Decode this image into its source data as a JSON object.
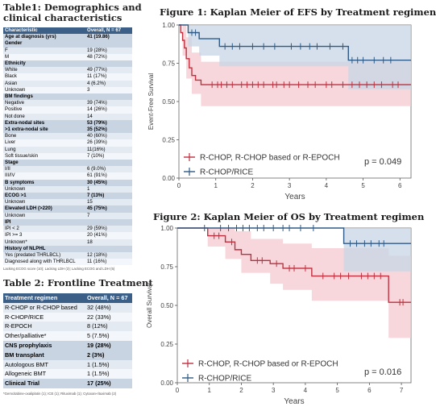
{
  "table1": {
    "title": "Table1: Demographics and clinical characteristics",
    "title_line1": "Table1: Demographics and",
    "title_line2": "clinical characteristics",
    "rows": [
      {
        "label": "Characteristic",
        "value": "Overall, N = 67",
        "kind": "hdr"
      },
      {
        "label": "Age at diagnosis (yrs)",
        "value": "41 (19.86)",
        "kind": "sec"
      },
      {
        "label": "Gender",
        "value": "",
        "kind": "sec"
      },
      {
        "label": "F",
        "value": "19 (28%)",
        "kind": "row"
      },
      {
        "label": "M",
        "value": "48 (72%)",
        "kind": "row"
      },
      {
        "label": "Ethnicity",
        "value": "",
        "kind": "sec"
      },
      {
        "label": "White",
        "value": "49 (77%)",
        "kind": "row"
      },
      {
        "label": "Black",
        "value": "11 (17%)",
        "kind": "row"
      },
      {
        "label": "Asian",
        "value": "4 (6.2%)",
        "kind": "row"
      },
      {
        "label": "Unknown",
        "value": "3",
        "kind": "row"
      },
      {
        "label": "BM findings",
        "value": "",
        "kind": "sec"
      },
      {
        "label": "Negative",
        "value": "39 (74%)",
        "kind": "row"
      },
      {
        "label": "Positive",
        "value": "14 (26%)",
        "kind": "row"
      },
      {
        "label": "Not done",
        "value": "14",
        "kind": "row"
      },
      {
        "label": "Extra-nodal sites",
        "value": "53 (79%)",
        "kind": "sec"
      },
      {
        "label": ">1 extra-nodal site",
        "value": "35 (52%)",
        "kind": "sec"
      },
      {
        "label": "Bone",
        "value": "40 (60%)",
        "kind": "row"
      },
      {
        "label": "Liver",
        "value": "26 (39%)",
        "kind": "row"
      },
      {
        "label": "Lung",
        "value": "11(16%)",
        "kind": "row"
      },
      {
        "label": "Soft tissue/skin",
        "value": "7 (10%)",
        "kind": "row"
      },
      {
        "label": "Stage",
        "value": "",
        "kind": "sec"
      },
      {
        "label": "I/II",
        "value": "6 (9.0%)",
        "kind": "row"
      },
      {
        "label": "III/IV",
        "value": "61 (91%)",
        "kind": "row"
      },
      {
        "label": "B symptoms",
        "value": "30 (45%)",
        "kind": "sec"
      },
      {
        "label": "Unknown",
        "value": "1",
        "kind": "row"
      },
      {
        "label": "ECOG >1",
        "value": "7 (13%)",
        "kind": "sec"
      },
      {
        "label": "Unknown",
        "value": "15",
        "kind": "row"
      },
      {
        "label": "Elevated LDH (>220)",
        "value": "45 (75%)",
        "kind": "sec"
      },
      {
        "label": "Unknown",
        "value": "7",
        "kind": "row"
      },
      {
        "label": "IPI",
        "value": "",
        "kind": "sec"
      },
      {
        "label": "IPI < 2",
        "value": "29 (59%)",
        "kind": "row"
      },
      {
        "label": "IPI >= 3",
        "value": "20 (41%)",
        "kind": "row"
      },
      {
        "label": "Unknown*",
        "value": "18",
        "kind": "row"
      },
      {
        "label": "History of NLPHL",
        "value": "",
        "kind": "sec"
      },
      {
        "label": "Yes (predated THRLBCL)",
        "value": "12 (18%)",
        "kind": "row"
      },
      {
        "label": "Diagnosed along with THRLBCL",
        "value": "11 (16%)",
        "kind": "row"
      }
    ],
    "footnote": "Lacking ECOG score (10); Lacking LDH (3); Lacking ECOG and LDH (5)"
  },
  "table2": {
    "title": "Table 2: Frontline Treatment",
    "rows": [
      {
        "label": "Treatment regimen",
        "value": "Overall, N = 67",
        "kind": "hdr"
      },
      {
        "label": "R-CHOP or R-CHOP based",
        "value": "32 (48%)",
        "kind": "row"
      },
      {
        "label": "R-CHOP/RICE",
        "value": "22 (33%)",
        "kind": "row"
      },
      {
        "label": "R-EPOCH",
        "value": "8 (12%)",
        "kind": "row"
      },
      {
        "label": "Other/palliative*",
        "value": "5 (7.5%)",
        "kind": "row"
      },
      {
        "label": "CNS prophylaxis",
        "value": "19 (28%)",
        "kind": "sec"
      },
      {
        "label": "BM transplant",
        "value": "2 (3%)",
        "kind": "sec"
      },
      {
        "label": "Autologous BMT",
        "value": "1 (1.5%)",
        "kind": "row"
      },
      {
        "label": "Allogeneic BMT",
        "value": "1 (1.5%)",
        "kind": "row"
      },
      {
        "label": "Clinical Trial",
        "value": "17 (25%)",
        "kind": "sec"
      }
    ],
    "footnote": "*Gemcitabine-oxaliplatin (1); ICE (1); Rituximab (1); Cytoxan-rituximab (2)"
  },
  "colors": {
    "red": "#c0303f",
    "blue": "#2f5a86",
    "red_band": "#f4c9d0",
    "blue_band": "#c7d6e5",
    "header": "#3b5f86"
  },
  "chart_data": [
    {
      "type": "line",
      "title": "Figure 1: Kaplan Meier of EFS by Treatment regimen",
      "xlabel": "Years",
      "ylabel": "Event-Free Survival",
      "xlim": [
        0,
        6.3
      ],
      "ylim": [
        0,
        1.0
      ],
      "xticks": [
        "0",
        "1",
        "2",
        "3",
        "4",
        "5",
        "6"
      ],
      "yticks": [
        "0.00",
        "0.25",
        "0.50",
        "0.75",
        "1.00"
      ],
      "pvalue": "p = 0.049",
      "legend_position": "bottom-left",
      "series": [
        {
          "name": "R-CHOP, R-CHOP based or R-EPOCH",
          "color": "red",
          "steps": [
            [
              0,
              1.0
            ],
            [
              0.05,
              0.95
            ],
            [
              0.1,
              0.9
            ],
            [
              0.15,
              0.85
            ],
            [
              0.2,
              0.78
            ],
            [
              0.28,
              0.72
            ],
            [
              0.35,
              0.67
            ],
            [
              0.45,
              0.64
            ],
            [
              0.6,
              0.61
            ],
            [
              6.3,
              0.61
            ]
          ],
          "ci_upper": [
            [
              0,
              1.0
            ],
            [
              0.1,
              1.0
            ],
            [
              0.2,
              0.92
            ],
            [
              0.35,
              0.82
            ],
            [
              0.6,
              0.76
            ],
            [
              6.3,
              0.76
            ]
          ],
          "ci_lower": [
            [
              0,
              1.0
            ],
            [
              0.1,
              0.8
            ],
            [
              0.2,
              0.65
            ],
            [
              0.35,
              0.55
            ],
            [
              0.6,
              0.47
            ],
            [
              6.3,
              0.47
            ]
          ],
          "censors": [
            0.9,
            1.05,
            1.15,
            1.3,
            1.45,
            1.7,
            1.85,
            2.0,
            2.15,
            2.3,
            2.55,
            2.65,
            2.85,
            3.0,
            3.25,
            3.5,
            3.7,
            4.0,
            4.15,
            4.45,
            4.7,
            4.9,
            5.1,
            5.3,
            5.5,
            5.8,
            5.95
          ]
        },
        {
          "name": "R-CHOP/RICE",
          "color": "blue",
          "steps": [
            [
              0,
              1.0
            ],
            [
              0.25,
              0.95
            ],
            [
              0.55,
              0.91
            ],
            [
              1.1,
              0.86
            ],
            [
              4.6,
              0.86
            ],
            [
              4.6,
              0.77
            ],
            [
              6.3,
              0.77
            ]
          ],
          "ci_upper": [
            [
              0,
              1.0
            ],
            [
              6.3,
              1.0
            ]
          ],
          "ci_lower": [
            [
              0,
              1.0
            ],
            [
              0.25,
              0.86
            ],
            [
              0.55,
              0.8
            ],
            [
              1.1,
              0.73
            ],
            [
              4.6,
              0.73
            ],
            [
              4.6,
              0.58
            ],
            [
              6.3,
              0.58
            ]
          ],
          "censors": [
            0.35,
            0.45,
            1.25,
            1.45,
            1.65,
            2.0,
            2.3,
            2.6,
            3.05,
            3.3,
            3.55,
            3.75,
            4.1,
            4.45,
            4.7,
            4.85,
            5.0,
            5.3,
            5.55,
            5.75
          ]
        }
      ]
    },
    {
      "type": "line",
      "title": "Figure 2: Kaplan Meier of OS by Treatment regimen",
      "xlabel": "Years",
      "ylabel": "Overall Survival",
      "xlim": [
        0,
        7.3
      ],
      "ylim": [
        0,
        1.0
      ],
      "xticks": [
        "0",
        "1",
        "2",
        "3",
        "4",
        "5",
        "6",
        "7"
      ],
      "yticks": [
        "0.00",
        "0.25",
        "0.50",
        "0.75",
        "1.00"
      ],
      "pvalue": "p = 0.016",
      "legend_position": "bottom-left",
      "series": [
        {
          "name": "R-CHOP, R-CHOP based or R-EPOCH",
          "color": "red",
          "steps": [
            [
              0,
              1.0
            ],
            [
              0.95,
              0.95
            ],
            [
              1.5,
              0.91
            ],
            [
              1.8,
              0.86
            ],
            [
              2.0,
              0.83
            ],
            [
              2.3,
              0.79
            ],
            [
              2.9,
              0.77
            ],
            [
              3.3,
              0.74
            ],
            [
              4.2,
              0.69
            ],
            [
              6.6,
              0.69
            ],
            [
              6.6,
              0.52
            ],
            [
              7.3,
              0.52
            ]
          ],
          "ci_upper": [
            [
              0,
              1.0
            ],
            [
              1.5,
              1.0
            ],
            [
              1.8,
              0.98
            ],
            [
              2.3,
              0.93
            ],
            [
              3.3,
              0.9
            ],
            [
              4.2,
              0.87
            ],
            [
              6.6,
              0.87
            ],
            [
              6.6,
              0.82
            ],
            [
              7.3,
              0.82
            ]
          ],
          "ci_lower": [
            [
              0,
              1.0
            ],
            [
              0.95,
              0.88
            ],
            [
              1.5,
              0.8
            ],
            [
              2.0,
              0.71
            ],
            [
              2.9,
              0.64
            ],
            [
              3.3,
              0.6
            ],
            [
              4.2,
              0.53
            ],
            [
              6.6,
              0.53
            ],
            [
              6.6,
              0.29
            ],
            [
              7.3,
              0.29
            ]
          ],
          "censors": [
            1.15,
            1.3,
            1.7,
            2.5,
            2.65,
            3.1,
            3.5,
            3.65,
            4.0,
            4.55,
            4.9,
            5.1,
            5.35,
            5.75,
            5.95,
            6.15,
            6.35,
            6.95,
            7.05
          ]
        },
        {
          "name": "R-CHOP/RICE",
          "color": "blue",
          "steps": [
            [
              0,
              1.0
            ],
            [
              5.2,
              1.0
            ],
            [
              5.2,
              0.9
            ],
            [
              7.3,
              0.9
            ]
          ],
          "ci_upper": [
            [
              0,
              1.0
            ],
            [
              7.3,
              1.0
            ]
          ],
          "ci_lower": [
            [
              0,
              1.0
            ],
            [
              5.2,
              1.0
            ],
            [
              5.2,
              0.72
            ],
            [
              7.3,
              0.72
            ]
          ],
          "censors": [
            0.85,
            1.35,
            1.6,
            1.85,
            2.05,
            2.25,
            2.5,
            2.7,
            3.0,
            3.3,
            3.5,
            3.85,
            4.25,
            5.4,
            5.6,
            5.85,
            6.05,
            6.3,
            6.45
          ]
        }
      ]
    }
  ]
}
